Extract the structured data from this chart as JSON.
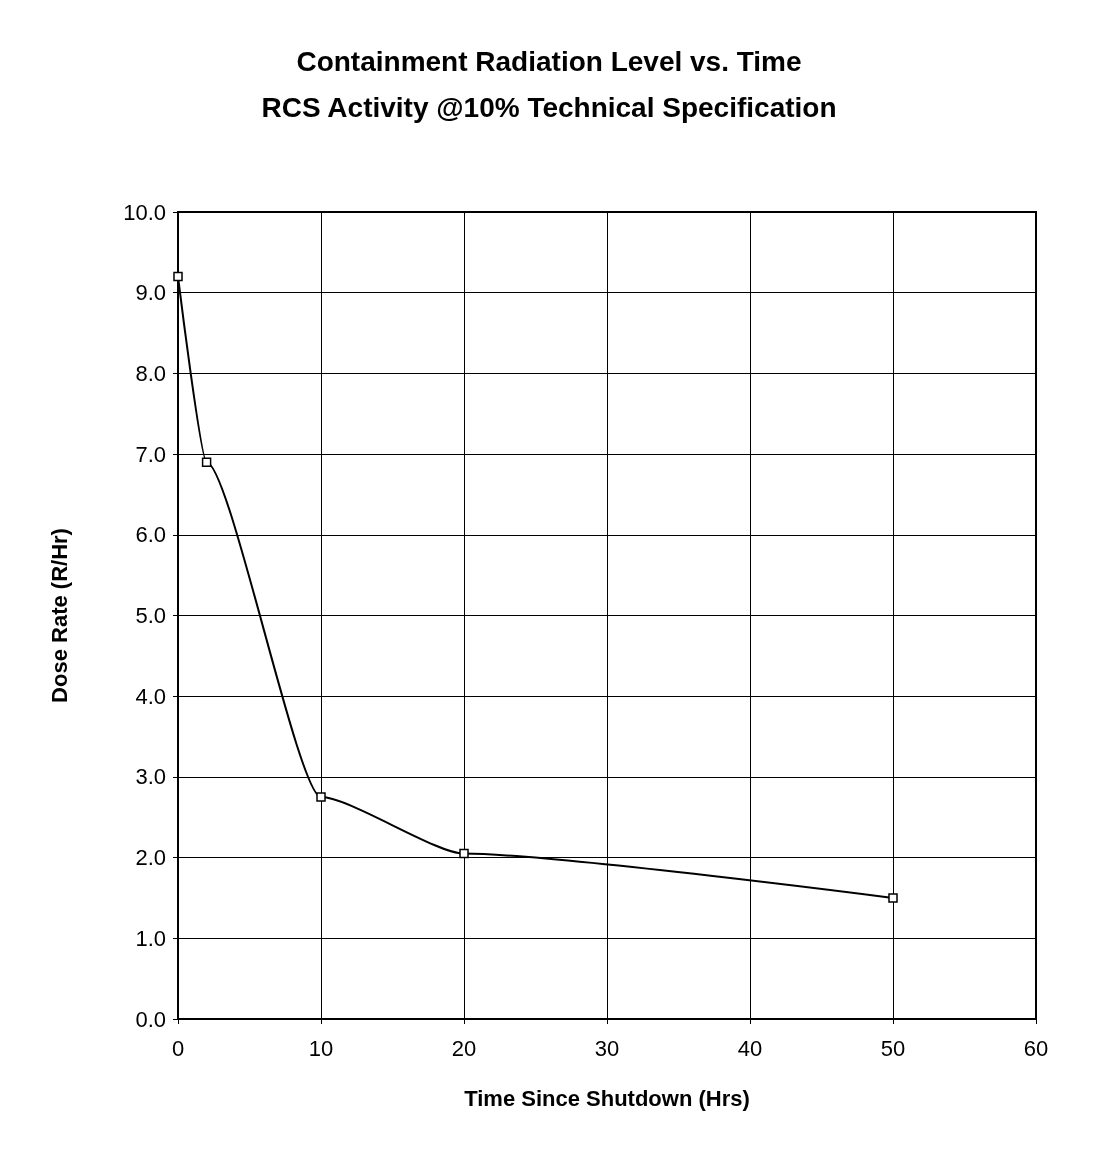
{
  "chart_data": {
    "type": "line",
    "title": "Containment Radiation Level vs. Time",
    "subtitle": "RCS Activity @10% Technical Specification",
    "xlabel": "Time Since Shutdown (Hrs)",
    "ylabel": "Dose Rate (R/Hr)",
    "x": [
      0,
      2,
      10,
      20,
      50
    ],
    "series": [
      {
        "color": "#000000",
        "values": [
          9.2,
          6.9,
          2.75,
          2.05,
          1.5
        ]
      }
    ],
    "xlim": [
      0,
      60
    ],
    "xticks": [
      0,
      10,
      20,
      30,
      40,
      50,
      60
    ],
    "ylim": [
      0,
      10
    ],
    "yticks": [
      {
        "value": 0,
        "label": "0.0"
      },
      {
        "value": 1,
        "label": "1.0"
      },
      {
        "value": 2,
        "label": "2.0"
      },
      {
        "value": 3,
        "label": "3.0"
      },
      {
        "value": 4,
        "label": "4.0"
      },
      {
        "value": 5,
        "label": "5.0"
      },
      {
        "value": 6,
        "label": "6.0"
      },
      {
        "value": 7,
        "label": "7.0"
      },
      {
        "value": 8,
        "label": "8.0"
      },
      {
        "value": 9,
        "label": "9.0"
      },
      {
        "value": 10,
        "label": "10.0"
      }
    ],
    "grid": true,
    "marker": "square",
    "line_style": "solid"
  }
}
